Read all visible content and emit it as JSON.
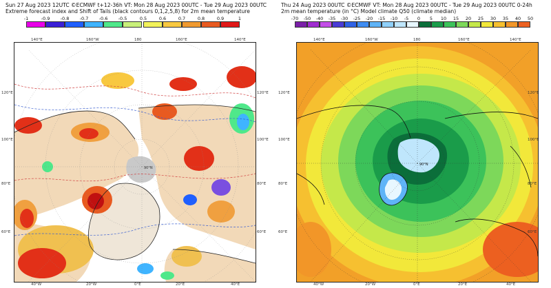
{
  "left": {
    "title_line1": "Sun 27 Aug 2023 12UTC ©ECMWF t+12-36h  VT: Mon 28 Aug 2023 00UTC - Tue 29 Aug 2023 00UTC",
    "title_line2": "Extreme forecast index and Shift of Tails (black contours 0,1,2,5,8) for 2m mean temperature",
    "neg_scale": {
      "labels": [
        "-1",
        "-0.9",
        "-0.8",
        "-0.7",
        "-0.6",
        "-0.5"
      ],
      "colors": [
        "#e800e8",
        "#3a1fd6",
        "#1f5fff",
        "#3fb4ff",
        "#4fe88a",
        "#c8f07a"
      ]
    },
    "pos_scale": {
      "labels": [
        "0.5",
        "0.6",
        "0.7",
        "0.8",
        "0.9",
        "1"
      ],
      "colors": [
        "#f2f25a",
        "#f8c840",
        "#f09a30",
        "#e85a20",
        "#e01818"
      ]
    },
    "top_labels": [
      "140°E",
      "160°W",
      "180",
      "160°E",
      "140°E"
    ],
    "left_labels": [
      "120°E",
      "100°E",
      "80°E",
      "60°E"
    ],
    "right_labels": [
      "120°E",
      "100°E",
      "80°E",
      "60°E"
    ],
    "bottom_labels": [
      "40°W",
      "20°W",
      "0°E",
      "20°E",
      "40°E"
    ],
    "pole_label": "90°N"
  },
  "right": {
    "title_line1": "Thu 24 Aug 2023 00UTC ©ECMWF VT: Mon 28 Aug 2023 00UTC - Tue 29 Aug 2023 00UTC  0-24h",
    "title_line2": "2m mean temperature (in °C)  Model climate Q50 (climate median)",
    "scale": {
      "labels": [
        "-70",
        "-50",
        "-40",
        "-35",
        "-30",
        "-25",
        "-20",
        "-15",
        "-10",
        "-5",
        "0",
        "5",
        "10",
        "15",
        "20",
        "25",
        "30",
        "35",
        "40",
        "50"
      ],
      "colors": [
        "#7a1fa8",
        "#a02cd0",
        "#c44ee8",
        "#4a3bd6",
        "#2f62e6",
        "#3e8cf2",
        "#5fb4f7",
        "#8fd0fa",
        "#bfe6fc",
        "#e8f7ff",
        "#0b6e3a",
        "#1a9c4a",
        "#3cc25a",
        "#7dd85a",
        "#c5e84a",
        "#f2e83a",
        "#f6c030",
        "#f29628",
        "#ec6020"
      ]
    },
    "top_labels": [
      "140°E",
      "160°W",
      "180",
      "160°E",
      "140°E"
    ],
    "left_labels": [
      "120°E",
      "100°E",
      "80°E",
      "60°E"
    ],
    "right_labels": [
      "120°E",
      "100°E",
      "80°E",
      "60°E"
    ],
    "bottom_labels": [
      "40°W",
      "20°W",
      "0°E",
      "20°E",
      "40°E"
    ],
    "pole_label": "90°N"
  }
}
